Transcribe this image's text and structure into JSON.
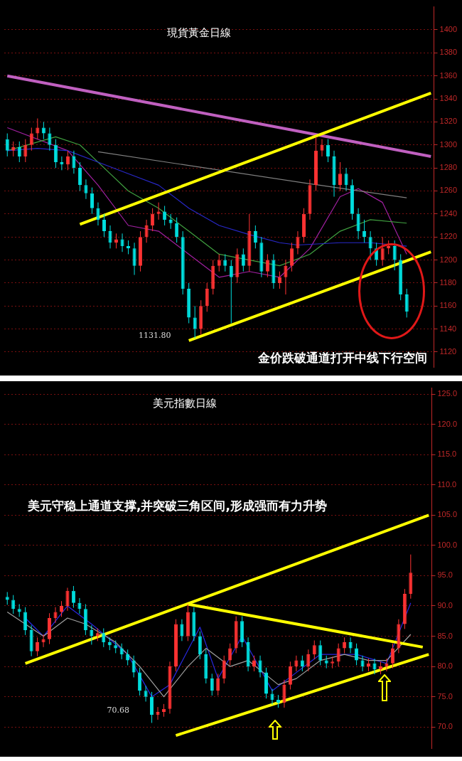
{
  "chart_data": [
    {
      "type": "candlestick",
      "title": "現貨黃金日線",
      "tick_labels": "y",
      "grid": "y",
      "legend": false,
      "categories": [
        null,
        null,
        null,
        null,
        null,
        null,
        null,
        null,
        null,
        null,
        null,
        null,
        null,
        null,
        null,
        null,
        null,
        null,
        null,
        null,
        null,
        null,
        null,
        null,
        null,
        null,
        null,
        null,
        null,
        null,
        null,
        null,
        null,
        null,
        null,
        null,
        null,
        null,
        null,
        null,
        null,
        null,
        null,
        null,
        null,
        null,
        null,
        null,
        null,
        null,
        null,
        null,
        null,
        null,
        null,
        null,
        null,
        null,
        null,
        null,
        null,
        null,
        null,
        null,
        null,
        null,
        null,
        null,
        null,
        null,
        null
      ],
      "ohlc": [
        [
          1305,
          1310,
          1290,
          1295
        ],
        [
          1295,
          1303,
          1290,
          1298
        ],
        [
          1298,
          1303,
          1285,
          1290
        ],
        [
          1290,
          1305,
          1285,
          1300
        ],
        [
          1300,
          1315,
          1295,
          1310
        ],
        [
          1310,
          1323,
          1305,
          1315
        ],
        [
          1315,
          1320,
          1305,
          1310
        ],
        [
          1310,
          1315,
          1295,
          1300
        ],
        [
          1300,
          1305,
          1280,
          1285
        ],
        [
          1285,
          1290,
          1278,
          1283
        ],
        [
          1283,
          1295,
          1278,
          1290
        ],
        [
          1290,
          1295,
          1275,
          1280
        ],
        [
          1280,
          1285,
          1260,
          1265
        ],
        [
          1265,
          1270,
          1253,
          1258
        ],
        [
          1258,
          1263,
          1240,
          1245
        ],
        [
          1245,
          1250,
          1230,
          1235
        ],
        [
          1235,
          1240,
          1220,
          1225
        ],
        [
          1225,
          1230,
          1210,
          1215
        ],
        [
          1215,
          1223,
          1210,
          1218
        ],
        [
          1218,
          1223,
          1207,
          1212
        ],
        [
          1212,
          1217,
          1205,
          1210
        ],
        [
          1210,
          1215,
          1187,
          1195
        ],
        [
          1195,
          1225,
          1190,
          1220
        ],
        [
          1220,
          1235,
          1215,
          1230
        ],
        [
          1230,
          1245,
          1225,
          1240
        ],
        [
          1240,
          1250,
          1235,
          1242
        ],
        [
          1242,
          1247,
          1230,
          1235
        ],
        [
          1235,
          1240,
          1227,
          1232
        ],
        [
          1232,
          1237,
          1215,
          1220
        ],
        [
          1220,
          1225,
          1170,
          1175
        ],
        [
          1175,
          1180,
          1145,
          1150
        ],
        [
          1150,
          1160,
          1131.8,
          1140
        ],
        [
          1140,
          1165,
          1135,
          1160
        ],
        [
          1160,
          1180,
          1155,
          1175
        ],
        [
          1175,
          1200,
          1170,
          1195
        ],
        [
          1195,
          1205,
          1190,
          1200
        ],
        [
          1200,
          1205,
          1190,
          1195
        ],
        [
          1195,
          1200,
          1145,
          1185
        ],
        [
          1185,
          1210,
          1180,
          1205
        ],
        [
          1205,
          1210,
          1190,
          1195
        ],
        [
          1195,
          1240,
          1190,
          1225
        ],
        [
          1225,
          1230,
          1210,
          1215
        ],
        [
          1215,
          1220,
          1185,
          1190
        ],
        [
          1190,
          1205,
          1185,
          1200
        ],
        [
          1200,
          1205,
          1175,
          1180
        ],
        [
          1180,
          1190,
          1175,
          1185
        ],
        [
          1185,
          1200,
          1170,
          1195
        ],
        [
          1195,
          1215,
          1190,
          1210
        ],
        [
          1210,
          1225,
          1205,
          1220
        ],
        [
          1220,
          1245,
          1215,
          1240
        ],
        [
          1240,
          1270,
          1235,
          1265
        ],
        [
          1265,
          1307,
          1260,
          1295
        ],
        [
          1295,
          1305,
          1290,
          1300
        ],
        [
          1300,
          1305,
          1285,
          1290
        ],
        [
          1290,
          1295,
          1255,
          1265
        ],
        [
          1265,
          1285,
          1260,
          1275
        ],
        [
          1275,
          1280,
          1260,
          1265
        ],
        [
          1265,
          1270,
          1235,
          1240
        ],
        [
          1240,
          1245,
          1218,
          1225
        ],
        [
          1225,
          1235,
          1215,
          1220
        ],
        [
          1220,
          1225,
          1200,
          1210
        ],
        [
          1210,
          1215,
          1195,
          1200
        ],
        [
          1200,
          1220,
          1195,
          1210
        ],
        [
          1210,
          1217,
          1205,
          1212
        ],
        [
          1212,
          1217,
          1191,
          1200
        ],
        [
          1200,
          1205,
          1165,
          1170
        ],
        [
          1170,
          1175,
          1150,
          1155
        ],
        null,
        null,
        null,
        null
      ],
      "colors": [
        "#00e0e0",
        "#ff3333",
        "#00e0e0",
        "#ff3333",
        "#ff3333",
        "#ff3333",
        "#00e0e0",
        "#00e0e0",
        "#00e0e0",
        "#00e0e0",
        "#ff3333",
        "#00e0e0",
        "#00e0e0",
        "#00e0e0",
        "#00e0e0",
        "#00e0e0",
        "#00e0e0",
        "#00e0e0",
        "#ff3333",
        "#00e0e0",
        "#00e0e0",
        "#00e0e0",
        "#ff3333",
        "#ff3333",
        "#ff3333",
        "#ff3333",
        "#00e0e0",
        "#00e0e0",
        "#00e0e0",
        "#00e0e0",
        "#00e0e0",
        "#00e0e0",
        "#ff3333",
        "#ff3333",
        "#ff3333",
        "#ff3333",
        "#00e0e0",
        "#00e0e0",
        "#ff3333",
        "#00e0e0",
        "#ff3333",
        "#00e0e0",
        "#00e0e0",
        "#ff3333",
        "#00e0e0",
        "#ff3333",
        "#ff3333",
        "#ff3333",
        "#ff3333",
        "#ff3333",
        "#ff3333",
        "#ff3333",
        "#ff3333",
        "#00e0e0",
        "#00e0e0",
        "#ff3333",
        "#00e0e0",
        "#00e0e0",
        "#00e0e0",
        "#00e0e0",
        "#00e0e0",
        "#00e0e0",
        "#ff3333",
        "#ff3333",
        "#00e0e0",
        "#00e0e0",
        "#00e0e0",
        null,
        null,
        null,
        null
      ],
      "series": [
        {
          "type": "line",
          "color": "#ffff00",
          "values": [
            null,
            null,
            null,
            null,
            null,
            null,
            null,
            null,
            null,
            null,
            null,
            null,
            1231,
            null,
            null,
            null,
            null,
            null,
            null,
            null,
            null,
            null,
            null,
            null,
            null,
            null,
            null,
            null,
            null,
            null,
            null,
            null,
            null,
            null,
            null,
            null,
            null,
            null,
            null,
            null,
            null,
            null,
            null,
            null,
            null,
            null,
            null,
            null,
            null,
            null,
            null,
            null,
            null,
            null,
            null,
            null,
            null,
            null,
            null,
            null,
            null,
            null,
            null,
            null,
            null,
            null,
            null,
            null,
            null,
            null,
            1345
          ]
        },
        {
          "type": "line",
          "color": "#ffff00",
          "values": [
            null,
            null,
            null,
            null,
            null,
            null,
            null,
            null,
            null,
            null,
            null,
            null,
            null,
            null,
            null,
            null,
            null,
            null,
            null,
            null,
            null,
            null,
            null,
            null,
            null,
            null,
            null,
            null,
            null,
            null,
            1130,
            null,
            null,
            null,
            null,
            null,
            null,
            null,
            null,
            null,
            null,
            null,
            null,
            null,
            null,
            null,
            null,
            null,
            null,
            null,
            null,
            null,
            null,
            null,
            null,
            null,
            null,
            null,
            null,
            null,
            null,
            null,
            null,
            null,
            null,
            null,
            null,
            null,
            null,
            null,
            1207
          ]
        },
        {
          "type": "line",
          "color": "#c060c0",
          "values": [
            1360,
            null,
            null,
            null,
            null,
            null,
            null,
            null,
            null,
            null,
            null,
            null,
            null,
            null,
            null,
            null,
            null,
            null,
            null,
            null,
            null,
            null,
            null,
            null,
            null,
            null,
            null,
            null,
            null,
            null,
            null,
            null,
            null,
            null,
            null,
            null,
            null,
            null,
            null,
            null,
            null,
            null,
            null,
            null,
            null,
            null,
            null,
            null,
            null,
            null,
            null,
            null,
            null,
            null,
            null,
            null,
            null,
            null,
            null,
            null,
            null,
            null,
            null,
            null,
            null,
            null,
            null,
            null,
            null,
            null,
            1290
          ]
        },
        {
          "type": "line",
          "color": "#2828c8",
          "values": [
            1295,
            null,
            null,
            null,
            null,
            1297,
            null,
            null,
            null,
            null,
            1295,
            null,
            null,
            null,
            null,
            1285,
            null,
            null,
            null,
            null,
            1275,
            null,
            null,
            null,
            null,
            1265,
            null,
            null,
            null,
            null,
            1245,
            null,
            null,
            null,
            null,
            1230,
            null,
            null,
            null,
            null,
            1222,
            null,
            null,
            null,
            null,
            1215,
            null,
            null,
            1213,
            null,
            null,
            null,
            null,
            null,
            null,
            1215,
            null,
            null,
            null,
            null,
            1215,
            null,
            null,
            null,
            null,
            null,
            1212,
            null,
            null,
            null,
            null
          ]
        },
        {
          "type": "line",
          "color": "#40a040",
          "values": [
            1295,
            null,
            null,
            null,
            null,
            null,
            null,
            null,
            1307,
            null,
            null,
            null,
            1300,
            null,
            null,
            null,
            1280,
            null,
            null,
            null,
            1260,
            null,
            null,
            null,
            null,
            1245,
            null,
            null,
            null,
            null,
            1225,
            null,
            null,
            null,
            null,
            1205,
            null,
            null,
            null,
            null,
            1200,
            null,
            null,
            null,
            null,
            1195,
            null,
            null,
            null,
            null,
            1205,
            null,
            null,
            null,
            null,
            1225,
            null,
            null,
            null,
            null,
            1235,
            null,
            null,
            null,
            null,
            null,
            1232,
            null,
            null,
            null,
            null
          ]
        },
        {
          "type": "line",
          "color": "#808080",
          "values": [
            null,
            null,
            null,
            null,
            null,
            null,
            null,
            null,
            null,
            null,
            null,
            null,
            null,
            null,
            null,
            1294,
            null,
            null,
            null,
            null,
            null,
            null,
            null,
            null,
            null,
            null,
            null,
            null,
            null,
            null,
            null,
            null,
            null,
            null,
            null,
            null,
            null,
            null,
            null,
            null,
            null,
            null,
            null,
            null,
            null,
            null,
            null,
            null,
            null,
            1267,
            null,
            null,
            null,
            null,
            null,
            null,
            null,
            null,
            null,
            null,
            null,
            null,
            null,
            null,
            null,
            null,
            1254,
            null,
            null,
            null,
            null
          ]
        },
        {
          "type": "line",
          "color": "#a020a0",
          "values": [
            1315,
            null,
            null,
            null,
            null,
            null,
            null,
            null,
            null,
            null,
            1295,
            null,
            null,
            null,
            null,
            1265,
            null,
            null,
            null,
            null,
            1230,
            null,
            null,
            null,
            null,
            1225,
            null,
            null,
            null,
            null,
            1205,
            null,
            null,
            null,
            null,
            1185,
            null,
            null,
            null,
            null,
            1190,
            null,
            null,
            null,
            null,
            1185,
            null,
            null,
            null,
            null,
            1210,
            null,
            null,
            null,
            null,
            1255,
            null,
            null,
            1262,
            null,
            null,
            null,
            1250,
            null,
            null,
            null,
            1205,
            null,
            null,
            null,
            null
          ]
        }
      ],
      "ylim": [
        1107,
        1420
      ],
      "yticks": [
        1120,
        1140,
        1160,
        1180,
        1200,
        1220,
        1240,
        1260,
        1280,
        1300,
        1320,
        1340,
        1360,
        1380,
        1400
      ],
      "annotations": [
        "金价跌破通道打开中线下行空间",
        "1131.80"
      ]
    },
    {
      "type": "candlestick",
      "title": "美元指數日線",
      "tick_labels": "y",
      "grid": "y",
      "legend": false,
      "categories": [
        null,
        null,
        null,
        null,
        null,
        null,
        null,
        null,
        null,
        null,
        null,
        null,
        null,
        null,
        null,
        null,
        null,
        null,
        null,
        null,
        null,
        null,
        null,
        null,
        null,
        null,
        null,
        null,
        null,
        null,
        null,
        null,
        null,
        null,
        null,
        null,
        null,
        null,
        null,
        null,
        null,
        null,
        null,
        null,
        null,
        null,
        null,
        null,
        null,
        null,
        null,
        null,
        null,
        null,
        null,
        null,
        null,
        null,
        null,
        null,
        null,
        null,
        null,
        null,
        null,
        null,
        null,
        null,
        null,
        null,
        null
      ],
      "ohlc": [
        [
          91.5,
          92.3,
          90.2,
          91
        ],
        [
          91,
          91.8,
          88.7,
          89.5
        ],
        [
          89.5,
          90.3,
          88.2,
          89
        ],
        [
          89,
          89.8,
          85.2,
          86
        ],
        [
          86,
          86.8,
          81.7,
          82.5
        ],
        [
          82.5,
          84.8,
          81.7,
          84
        ],
        [
          84,
          85.3,
          83.2,
          84.5
        ],
        [
          84.5,
          88.8,
          83.7,
          88
        ],
        [
          88,
          89.8,
          87.2,
          89
        ],
        [
          89,
          90.8,
          88.2,
          90
        ],
        [
          90,
          93,
          89.2,
          92.5
        ],
        [
          92.5,
          93.3,
          89.7,
          90.5
        ],
        [
          90.5,
          91.3,
          88.7,
          89.5
        ],
        [
          89.5,
          90.3,
          85.2,
          86
        ],
        [
          86,
          86.8,
          83.6,
          85
        ],
        [
          85,
          86.3,
          84.2,
          85.5
        ],
        [
          85.5,
          86.3,
          83.2,
          84
        ],
        [
          84,
          84.8,
          82.7,
          83.5
        ],
        [
          83.5,
          84.3,
          82.2,
          83
        ],
        [
          83,
          83.8,
          81.2,
          82
        ],
        [
          82,
          82.8,
          80.2,
          81
        ],
        [
          81,
          81.8,
          78.2,
          79
        ],
        [
          79,
          79.8,
          75.2,
          76
        ],
        [
          76,
          76.8,
          74.2,
          75
        ],
        [
          75,
          75.8,
          70.68,
          72
        ],
        [
          72,
          73.3,
          71.2,
          72.5
        ],
        [
          72.5,
          73.8,
          71.7,
          73
        ],
        [
          73,
          80.8,
          72.2,
          80
        ],
        [
          80,
          87.8,
          79.2,
          87
        ],
        [
          87,
          87.8,
          84.2,
          85
        ],
        [
          85,
          90.3,
          84.2,
          89
        ],
        [
          89,
          89.8,
          84.2,
          85
        ],
        [
          85,
          85.8,
          81.2,
          82
        ],
        [
          82,
          82.8,
          77.2,
          78
        ],
        [
          78,
          78.8,
          75.2,
          76
        ],
        [
          76,
          78.8,
          75.2,
          78
        ],
        [
          78,
          81.8,
          77.2,
          81
        ],
        [
          81,
          83.8,
          80.2,
          83
        ],
        [
          83,
          88.3,
          82.2,
          87.5
        ],
        [
          87.5,
          88.3,
          83.2,
          84
        ],
        [
          84,
          84.8,
          79.2,
          80
        ],
        [
          80,
          81.8,
          79.2,
          81
        ],
        [
          81,
          81.8,
          78.2,
          79
        ],
        [
          79,
          79.8,
          74.7,
          75.5
        ],
        [
          75.5,
          76.3,
          73.7,
          74.5
        ],
        [
          74.5,
          75.3,
          73.2,
          74
        ],
        [
          74,
          77.8,
          73.2,
          77
        ],
        [
          77,
          80.8,
          76.2,
          80
        ],
        [
          80,
          81.8,
          79.2,
          81
        ],
        [
          81,
          81.8,
          79.2,
          80
        ],
        [
          80,
          82.8,
          79.2,
          82
        ],
        [
          82,
          84.3,
          81.2,
          83.5
        ],
        [
          83.5,
          84.3,
          80.2,
          81
        ],
        [
          81,
          81.8,
          79.7,
          80.5
        ],
        [
          80.5,
          81.6,
          79.7,
          80.8
        ],
        [
          80.8,
          83.8,
          80,
          83
        ],
        [
          83,
          84.8,
          82.2,
          84
        ],
        [
          84,
          84.8,
          82.2,
          83
        ],
        [
          83,
          83.8,
          80.2,
          81
        ],
        [
          81,
          81.8,
          79.2,
          80
        ],
        [
          80,
          81.3,
          79.2,
          80.5
        ],
        [
          80.5,
          81.3,
          78.7,
          79.5
        ],
        [
          79.5,
          80.8,
          78.7,
          80
        ],
        [
          80,
          81.3,
          79.2,
          80.5
        ],
        [
          80.5,
          83.8,
          79.7,
          83
        ],
        [
          83,
          87.8,
          82.2,
          87
        ],
        [
          87,
          92.8,
          86.2,
          92
        ],
        [
          92,
          98.5,
          91.2,
          95.5
        ],
        null,
        null,
        null
      ],
      "colors": [
        "#00e0e0",
        "#00e0e0",
        "#00e0e0",
        "#00e0e0",
        "#00e0e0",
        "#ff3333",
        "#ff3333",
        "#ff3333",
        "#ff3333",
        "#ff3333",
        "#ff3333",
        "#00e0e0",
        "#00e0e0",
        "#00e0e0",
        "#00e0e0",
        "#ff3333",
        "#00e0e0",
        "#00e0e0",
        "#00e0e0",
        "#00e0e0",
        "#00e0e0",
        "#00e0e0",
        "#00e0e0",
        "#00e0e0",
        "#00e0e0",
        "#ff3333",
        "#ff3333",
        "#ff3333",
        "#ff3333",
        "#00e0e0",
        "#ff3333",
        "#00e0e0",
        "#00e0e0",
        "#00e0e0",
        "#00e0e0",
        "#ff3333",
        "#ff3333",
        "#ff3333",
        "#ff3333",
        "#00e0e0",
        "#00e0e0",
        "#ff3333",
        "#00e0e0",
        "#00e0e0",
        "#00e0e0",
        "#00e0e0",
        "#ff3333",
        "#ff3333",
        "#ff3333",
        "#00e0e0",
        "#ff3333",
        "#ff3333",
        "#00e0e0",
        "#00e0e0",
        "#ff3333",
        "#ff3333",
        "#ff3333",
        "#00e0e0",
        "#00e0e0",
        "#00e0e0",
        "#ff3333",
        "#00e0e0",
        "#ff3333",
        "#ff3333",
        "#ff3333",
        "#ff3333",
        "#ff3333",
        "#ff3333",
        null,
        null,
        null
      ],
      "series": [
        {
          "type": "line",
          "color": "#ffff00",
          "values": [
            null,
            null,
            null,
            80.5,
            null,
            null,
            null,
            null,
            null,
            null,
            null,
            null,
            null,
            null,
            null,
            null,
            null,
            null,
            null,
            null,
            null,
            null,
            null,
            null,
            null,
            null,
            null,
            null,
            null,
            null,
            null,
            null,
            null,
            null,
            null,
            null,
            null,
            null,
            null,
            null,
            null,
            null,
            null,
            null,
            null,
            null,
            null,
            null,
            null,
            null,
            null,
            null,
            null,
            null,
            null,
            null,
            null,
            null,
            null,
            null,
            null,
            null,
            null,
            null,
            null,
            null,
            null,
            null,
            null,
            null,
            105
          ]
        },
        {
          "type": "line",
          "color": "#ffff00",
          "values": [
            null,
            null,
            null,
            null,
            null,
            null,
            null,
            null,
            null,
            null,
            null,
            null,
            null,
            null,
            null,
            null,
            null,
            null,
            null,
            null,
            null,
            null,
            null,
            null,
            null,
            null,
            null,
            null,
            null,
            null,
            90.3,
            null,
            null,
            null,
            null,
            null,
            null,
            null,
            null,
            null,
            null,
            null,
            null,
            null,
            null,
            null,
            null,
            null,
            null,
            null,
            null,
            null,
            null,
            null,
            null,
            null,
            null,
            null,
            null,
            null,
            null,
            null,
            null,
            null,
            null,
            null,
            null,
            null,
            null,
            83.2,
            null
          ]
        },
        {
          "type": "line",
          "color": "#ffff00",
          "values": [
            null,
            null,
            null,
            null,
            null,
            null,
            null,
            null,
            null,
            null,
            null,
            null,
            null,
            null,
            null,
            null,
            null,
            null,
            null,
            null,
            null,
            null,
            null,
            null,
            null,
            null,
            null,
            null,
            68.6,
            null,
            null,
            null,
            null,
            null,
            null,
            null,
            null,
            null,
            null,
            null,
            null,
            null,
            null,
            null,
            null,
            null,
            null,
            null,
            null,
            null,
            null,
            null,
            null,
            null,
            null,
            null,
            null,
            null,
            null,
            null,
            null,
            null,
            null,
            null,
            null,
            null,
            null,
            null,
            null,
            null,
            82
          ]
        },
        {
          "type": "line",
          "color": "#a0a0a0",
          "values": [
            89,
            null,
            null,
            null,
            null,
            null,
            85,
            null,
            null,
            null,
            88,
            null,
            null,
            87,
            null,
            null,
            null,
            null,
            84,
            null,
            null,
            null,
            80,
            null,
            null,
            null,
            75,
            null,
            null,
            null,
            80,
            null,
            null,
            83,
            null,
            null,
            null,
            80,
            null,
            null,
            81,
            null,
            null,
            null,
            null,
            77,
            null,
            null,
            78,
            null,
            null,
            null,
            81,
            null,
            null,
            null,
            82,
            null,
            null,
            null,
            81,
            null,
            null,
            81,
            null,
            null,
            null,
            85.3,
            null,
            null,
            null
          ]
        },
        {
          "type": "line",
          "color": "#2828e0",
          "values": [
            null,
            null,
            null,
            88,
            null,
            null,
            85,
            null,
            null,
            null,
            90,
            null,
            null,
            null,
            87,
            null,
            null,
            null,
            null,
            null,
            82,
            null,
            null,
            null,
            75,
            null,
            null,
            77,
            null,
            null,
            null,
            null,
            86.5,
            null,
            null,
            78,
            null,
            null,
            null,
            85,
            null,
            null,
            null,
            null,
            76,
            null,
            null,
            null,
            79,
            null,
            null,
            null,
            82,
            null,
            null,
            null,
            null,
            null,
            82,
            null,
            null,
            null,
            null,
            80.5,
            null,
            null,
            null,
            90.5,
            null,
            null,
            null
          ]
        }
      ],
      "ylim": [
        66.5,
        126
      ],
      "yticks": [
        {
          "value": 70,
          "label": "70.0"
        },
        {
          "value": 75,
          "label": "75.0"
        },
        {
          "value": 80,
          "label": "80.0"
        },
        {
          "value": 85,
          "label": "85.0"
        },
        {
          "value": 90,
          "label": "90.0"
        },
        {
          "value": 95,
          "label": "95.0"
        },
        {
          "value": 100,
          "label": "100.0"
        },
        {
          "value": 105,
          "label": "105.0"
        },
        {
          "value": 110,
          "label": "110.0"
        },
        {
          "value": 115,
          "label": "115.0"
        },
        {
          "value": 120,
          "label": "120.0"
        },
        {
          "value": 125,
          "label": "125.0"
        }
      ],
      "annotations": [
        "美元守稳上通道支撑,并突破三角区间,形成强而有力升势",
        "70.68"
      ]
    }
  ]
}
